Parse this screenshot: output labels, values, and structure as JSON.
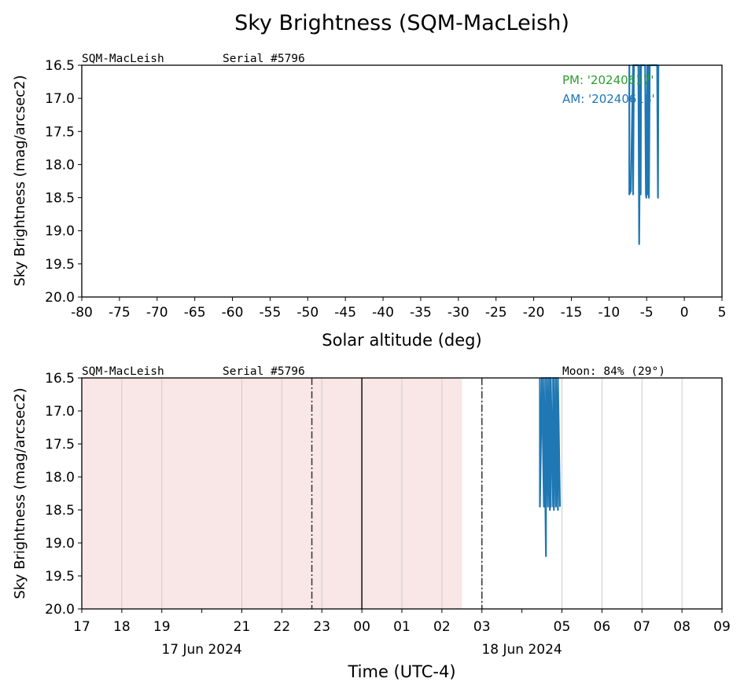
{
  "figure": {
    "title": "Sky Brightness (SQM-MacLeish)"
  },
  "colors": {
    "series": "#1f77b4",
    "pm": "#2ca02c",
    "am": "#1f77b4",
    "night_shade": "#f9e6e6",
    "grid": "#cccccc",
    "vline": "#333333"
  },
  "chart_data": [
    {
      "type": "line",
      "title": "",
      "xlabel": "Solar altitude (deg)",
      "ylabel": "Sky Brightness (mag/arcsec2)",
      "xlim": [
        -80,
        5
      ],
      "ylim": [
        20.0,
        16.5
      ],
      "y_inverted": true,
      "xticks": [
        "-80",
        "-75",
        "-70",
        "-65",
        "-60",
        "-55",
        "-50",
        "-45",
        "-40",
        "-35",
        "-30",
        "-25",
        "-20",
        "-15",
        "-10",
        "-5",
        "0",
        "5"
      ],
      "yticks": [
        "16.5",
        "17.0",
        "17.5",
        "18.0",
        "18.5",
        "19.0",
        "19.5",
        "20.0"
      ],
      "header_left": "SQM-MacLeish",
      "header_serial": "Serial #5796",
      "legend": [
        {
          "label": "PM: '20240617'",
          "color": "#2ca02c"
        },
        {
          "label": "AM: '20240618'",
          "color": "#1f77b4"
        }
      ],
      "series": [
        {
          "name": "AM: '20240618'",
          "x": [
            -7.3,
            -7.3,
            -7.1,
            -6.8,
            -6.8,
            -6.7,
            -6.1,
            -6.0,
            -5.95,
            -5.85,
            -5.8,
            -5.75,
            -5.2,
            -5.1,
            -5.05,
            -4.9,
            -4.85,
            -4.8,
            -4.7,
            -4.6,
            -3.6,
            -3.5,
            -3.45
          ],
          "y": [
            16.5,
            18.45,
            18.4,
            16.5,
            18.45,
            16.5,
            16.5,
            19.2,
            18.5,
            16.5,
            18.45,
            16.5,
            16.5,
            18.45,
            18.5,
            16.5,
            18.45,
            16.5,
            18.5,
            16.5,
            16.5,
            18.5,
            16.5
          ]
        }
      ]
    },
    {
      "type": "line",
      "title": "",
      "xlabel": "Time (UTC-4)",
      "ylabel": "Sky Brightness (mag/arcsec2)",
      "ylim": [
        20.0,
        16.5
      ],
      "y_inverted": true,
      "xlim_hours": [
        17,
        33
      ],
      "xtick_labels": [
        {
          "h": 17,
          "label": "17"
        },
        {
          "h": 18,
          "label": "18"
        },
        {
          "h": 19,
          "label": "19"
        },
        {
          "h": 21,
          "label": "21"
        },
        {
          "h": 22,
          "label": "22"
        },
        {
          "h": 23,
          "label": "23"
        },
        {
          "h": 24,
          "label": "00"
        },
        {
          "h": 25,
          "label": "01"
        },
        {
          "h": 26,
          "label": "02"
        },
        {
          "h": 27,
          "label": "03"
        },
        {
          "h": 29,
          "label": "05"
        },
        {
          "h": 30,
          "label": "06"
        },
        {
          "h": 31,
          "label": "07"
        },
        {
          "h": 32,
          "label": "08"
        },
        {
          "h": 33,
          "label": "09"
        }
      ],
      "unlabeled_ticks_hours": [
        20,
        28
      ],
      "date_labels": [
        {
          "h": 20,
          "label": "17 Jun 2024"
        },
        {
          "h": 28,
          "label": "18 Jun 2024"
        }
      ],
      "yticks": [
        "16.5",
        "17.0",
        "17.5",
        "18.0",
        "18.5",
        "19.0",
        "19.5",
        "20.0"
      ],
      "header_left": "SQM-MacLeish",
      "header_serial": "Serial #5796",
      "moon_text": "Moon: 84% (29°)",
      "night_span_hours": [
        17,
        26.5
      ],
      "dashdot_lines_hours": [
        22.75,
        27
      ],
      "midnight_line_hour": 24,
      "series": [
        {
          "name": "",
          "x_hours": [
            28.45,
            28.45,
            28.5,
            28.55,
            28.55,
            28.6,
            28.6,
            28.65,
            28.65,
            28.7,
            28.7,
            28.72,
            28.72,
            28.78,
            28.78,
            28.8,
            28.8,
            28.85,
            28.85,
            28.9,
            28.9,
            28.95
          ],
          "y": [
            16.5,
            18.45,
            16.5,
            18.45,
            16.5,
            19.2,
            16.5,
            18.45,
            16.5,
            18.5,
            16.5,
            18.45,
            16.5,
            18.45,
            16.5,
            18.5,
            16.5,
            18.45,
            16.5,
            18.5,
            16.5,
            18.45
          ]
        }
      ]
    }
  ]
}
